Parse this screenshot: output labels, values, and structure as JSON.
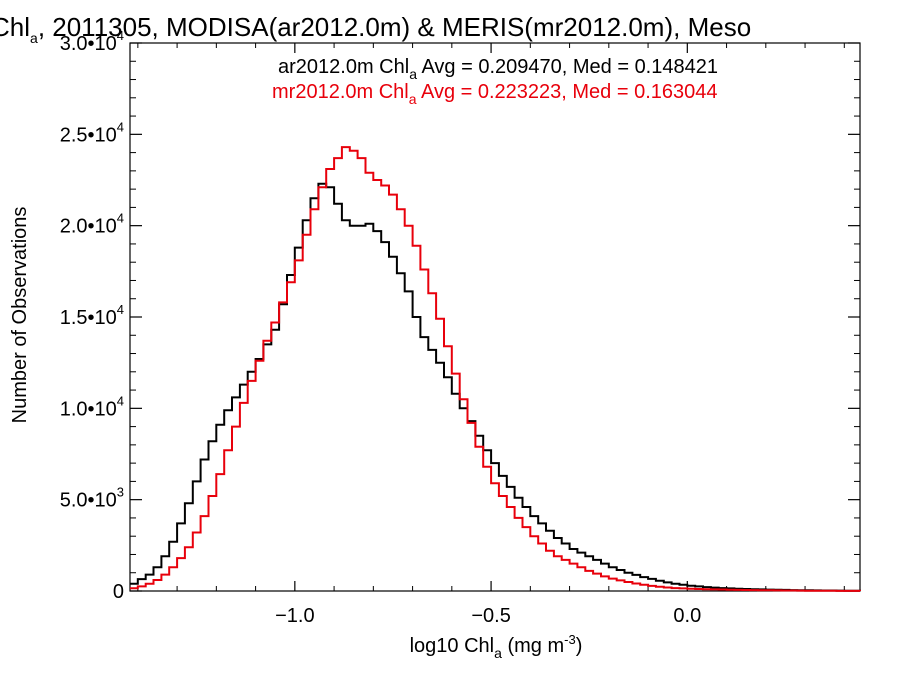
{
  "chart_data": {
    "type": "line",
    "title": {
      "pre": "Chl",
      "sub": "a",
      "post": ", 2011305, MODISA(ar2012.0m) & MERIS(mr2012.0m), Meso"
    },
    "xlabel": {
      "pre": "log10 Chl",
      "sub": "a",
      "mid": " (mg m",
      "sup": "-3",
      "post": ")"
    },
    "ylabel": "Number of Observations",
    "xlim": [
      -1.42,
      0.44
    ],
    "ylim": [
      0,
      30000
    ],
    "x_ticks": [
      {
        "value": -1.0,
        "label": "−1.0"
      },
      {
        "value": -0.5,
        "label": "−0.5"
      },
      {
        "value": 0.0,
        "label": "0.0"
      }
    ],
    "y_ticks": [
      {
        "value": 0,
        "mant": "0",
        "exp": ""
      },
      {
        "value": 5000,
        "mant": "5.0•10",
        "exp": "3"
      },
      {
        "value": 10000,
        "mant": "1.0•10",
        "exp": "4"
      },
      {
        "value": 15000,
        "mant": "1.5•10",
        "exp": "4"
      },
      {
        "value": 20000,
        "mant": "2.0•10",
        "exp": "4"
      },
      {
        "value": 25000,
        "mant": "2.5•10",
        "exp": "4"
      },
      {
        "value": 30000,
        "mant": "3.0•10",
        "exp": "4"
      }
    ],
    "grid": false,
    "legend_position": "top-right",
    "series": [
      {
        "name": "ar2012.0m",
        "label": {
          "pre": "ar2012.0m Chl",
          "sub": "a",
          "post": " Avg = 0.209470, Med = 0.148421"
        },
        "color": "#000000",
        "x": [
          -1.42,
          -1.4,
          -1.38,
          -1.36,
          -1.34,
          -1.32,
          -1.3,
          -1.28,
          -1.26,
          -1.24,
          -1.22,
          -1.2,
          -1.18,
          -1.16,
          -1.14,
          -1.12,
          -1.1,
          -1.08,
          -1.06,
          -1.04,
          -1.02,
          -1.0,
          -0.98,
          -0.96,
          -0.94,
          -0.92,
          -0.9,
          -0.88,
          -0.86,
          -0.84,
          -0.82,
          -0.8,
          -0.78,
          -0.76,
          -0.74,
          -0.72,
          -0.7,
          -0.68,
          -0.66,
          -0.64,
          -0.62,
          -0.6,
          -0.58,
          -0.56,
          -0.54,
          -0.52,
          -0.5,
          -0.48,
          -0.46,
          -0.44,
          -0.42,
          -0.4,
          -0.38,
          -0.36,
          -0.34,
          -0.32,
          -0.3,
          -0.28,
          -0.26,
          -0.24,
          -0.22,
          -0.2,
          -0.18,
          -0.16,
          -0.14,
          -0.12,
          -0.1,
          -0.08,
          -0.06,
          -0.04,
          -0.02,
          0.0,
          0.02,
          0.04,
          0.06,
          0.08,
          0.1,
          0.12,
          0.14,
          0.16,
          0.18,
          0.2,
          0.22,
          0.24,
          0.26,
          0.28,
          0.3,
          0.32,
          0.34,
          0.36,
          0.38,
          0.4,
          0.42,
          0.44
        ],
        "values": [
          400,
          650,
          900,
          1300,
          1900,
          2700,
          3700,
          4800,
          6000,
          7200,
          8200,
          9100,
          9900,
          10600,
          11300,
          12000,
          12700,
          13500,
          14300,
          15700,
          17300,
          18800,
          20300,
          21500,
          22300,
          22100,
          21200,
          20300,
          20000,
          20000,
          20100,
          19700,
          19100,
          18300,
          17400,
          16400,
          15000,
          13900,
          13200,
          12500,
          11700,
          10800,
          10000,
          9300,
          8500,
          7700,
          7000,
          6300,
          5700,
          5100,
          4600,
          4100,
          3700,
          3300,
          2900,
          2600,
          2300,
          2100,
          1900,
          1700,
          1500,
          1300,
          1150,
          1000,
          880,
          760,
          660,
          560,
          470,
          400,
          340,
          290,
          250,
          215,
          185,
          160,
          140,
          125,
          110,
          95,
          85,
          75,
          65,
          58,
          52,
          46,
          40,
          35,
          30,
          25,
          20,
          15,
          10,
          5
        ]
      },
      {
        "name": "mr2012.0m",
        "label": {
          "pre": "mr2012.0m Chl",
          "sub": "a",
          "post": " Avg = 0.223223, Med = 0.163044"
        },
        "color": "#e8000b",
        "x": [
          -1.42,
          -1.4,
          -1.38,
          -1.36,
          -1.34,
          -1.32,
          -1.3,
          -1.28,
          -1.26,
          -1.24,
          -1.22,
          -1.2,
          -1.18,
          -1.16,
          -1.14,
          -1.12,
          -1.1,
          -1.08,
          -1.06,
          -1.04,
          -1.02,
          -1.0,
          -0.98,
          -0.96,
          -0.94,
          -0.92,
          -0.9,
          -0.88,
          -0.86,
          -0.84,
          -0.82,
          -0.8,
          -0.78,
          -0.76,
          -0.74,
          -0.72,
          -0.7,
          -0.68,
          -0.66,
          -0.64,
          -0.62,
          -0.6,
          -0.58,
          -0.56,
          -0.54,
          -0.52,
          -0.5,
          -0.48,
          -0.46,
          -0.44,
          -0.42,
          -0.4,
          -0.38,
          -0.36,
          -0.34,
          -0.32,
          -0.3,
          -0.28,
          -0.26,
          -0.24,
          -0.22,
          -0.2,
          -0.18,
          -0.16,
          -0.14,
          -0.12,
          -0.1,
          -0.08,
          -0.06,
          -0.04,
          -0.02,
          0.0,
          0.02,
          0.04,
          0.06,
          0.08,
          0.1,
          0.12,
          0.14,
          0.16,
          0.18,
          0.2,
          0.22,
          0.24,
          0.26,
          0.28,
          0.3,
          0.32,
          0.34,
          0.36,
          0.38,
          0.4,
          0.42,
          0.44
        ],
        "values": [
          150,
          250,
          400,
          600,
          900,
          1300,
          1800,
          2400,
          3200,
          4100,
          5200,
          6400,
          7700,
          9000,
          10300,
          11500,
          12600,
          13700,
          14700,
          15800,
          16900,
          18100,
          19500,
          20900,
          22100,
          23100,
          23700,
          24300,
          24100,
          23700,
          22900,
          22500,
          22200,
          21700,
          20900,
          20000,
          18900,
          17600,
          16300,
          14900,
          13400,
          11900,
          10500,
          9200,
          7900,
          6800,
          5900,
          5200,
          4600,
          4000,
          3500,
          3000,
          2600,
          2200,
          1900,
          1700,
          1500,
          1300,
          1100,
          950,
          800,
          680,
          580,
          490,
          410,
          340,
          280,
          230,
          190,
          160,
          140,
          125,
          110,
          100,
          90,
          80,
          70,
          62,
          55,
          50,
          45,
          40,
          35,
          30,
          25,
          22,
          19,
          16,
          13,
          10,
          8,
          6,
          4,
          2
        ]
      }
    ]
  }
}
